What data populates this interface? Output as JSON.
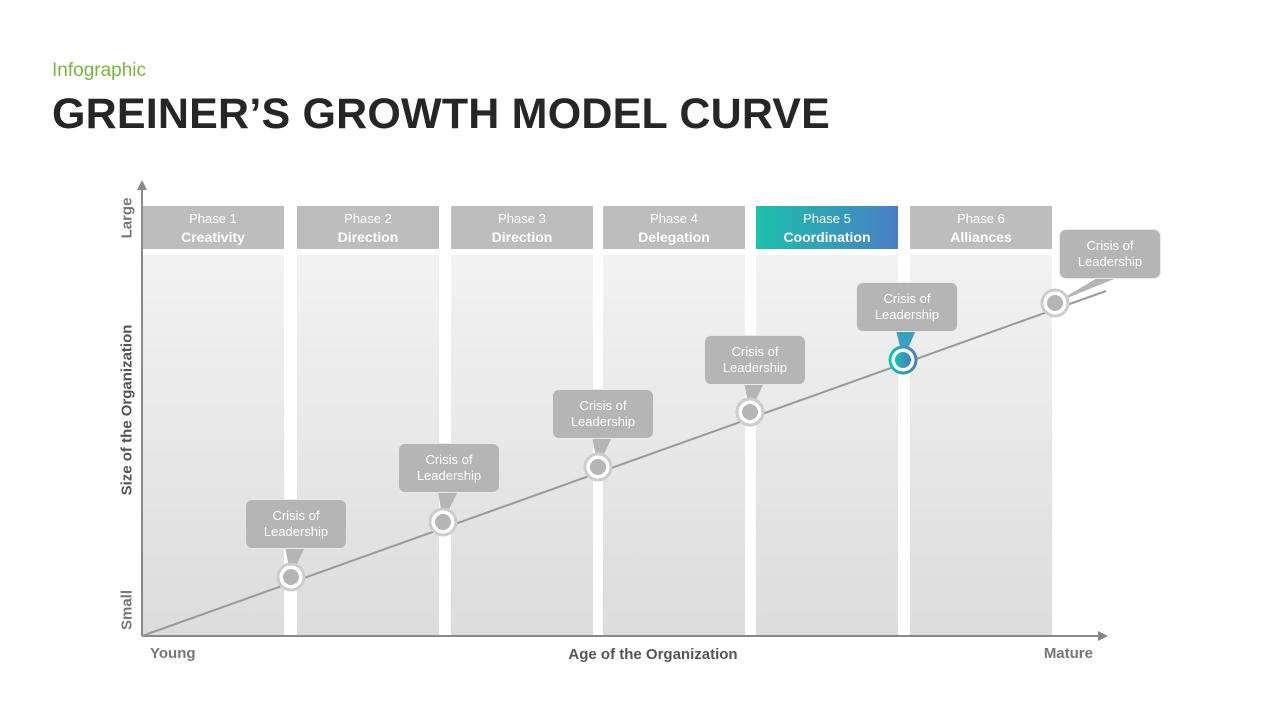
{
  "header": {
    "subtitle": "Infographic",
    "title": "GREINER’S GROWTH MODEL CURVE"
  },
  "axes": {
    "y_label": "Size of the Organization",
    "y_top": "Large",
    "y_bottom": "Small",
    "x_label": "Age of the Organization",
    "x_left": "Young",
    "x_right": "Mature"
  },
  "phases": [
    {
      "label": "Phase 1",
      "name": "Creativity"
    },
    {
      "label": "Phase 2",
      "name": "Direction"
    },
    {
      "label": "Phase 3",
      "name": "Direction"
    },
    {
      "label": "Phase 4",
      "name": "Delegation"
    },
    {
      "label": "Phase 5",
      "name": "Coordination"
    },
    {
      "label": "Phase 6",
      "name": "Alliances"
    }
  ],
  "callouts": [
    "Crisis of Leadership",
    "Crisis of Leadership",
    "Crisis of Leadership",
    "Crisis of Leadership",
    "Crisis of Leadership",
    "Crisis of Leadership"
  ]
}
